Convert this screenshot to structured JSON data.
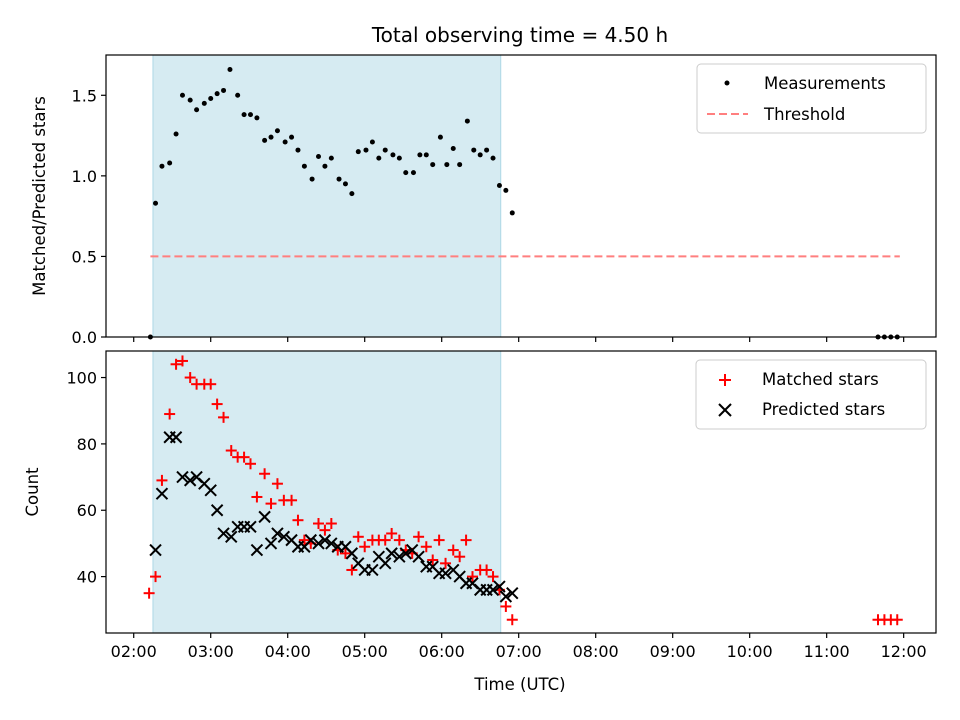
{
  "chart_data": [
    {
      "type": "scatter",
      "title": "Total observing time = 4.50 h",
      "xlabel": "",
      "ylabel": "Matched/Predicted stars",
      "xlim": [
        "02:00",
        "12:00"
      ],
      "ylim": [
        0,
        1.75
      ],
      "yticks": [
        "0.0",
        "0.5",
        "1.0",
        "1.5"
      ],
      "shaded_region": [
        "02:15",
        "06:46"
      ],
      "legend": {
        "placement": "top-right",
        "entries": [
          "Measurements",
          "Threshold"
        ]
      },
      "threshold": {
        "name": "Threshold",
        "y": 0.5,
        "x_range": [
          "02:13",
          "11:57"
        ],
        "color": "#ff7f7f"
      },
      "series": [
        {
          "name": "Measurements",
          "color": "#000000",
          "points": [
            [
              "02:13",
              0.0
            ],
            [
              "02:17",
              0.83
            ],
            [
              "02:22",
              1.06
            ],
            [
              "02:28",
              1.08
            ],
            [
              "02:33",
              1.26
            ],
            [
              "02:38",
              1.5
            ],
            [
              "02:44",
              1.47
            ],
            [
              "02:49",
              1.41
            ],
            [
              "02:55",
              1.45
            ],
            [
              "03:00",
              1.48
            ],
            [
              "03:05",
              1.51
            ],
            [
              "03:10",
              1.53
            ],
            [
              "03:15",
              1.66
            ],
            [
              "03:21",
              1.5
            ],
            [
              "03:26",
              1.38
            ],
            [
              "03:31",
              1.38
            ],
            [
              "03:36",
              1.36
            ],
            [
              "03:42",
              1.22
            ],
            [
              "03:47",
              1.24
            ],
            [
              "03:52",
              1.28
            ],
            [
              "03:58",
              1.21
            ],
            [
              "04:03",
              1.24
            ],
            [
              "04:08",
              1.16
            ],
            [
              "04:13",
              1.06
            ],
            [
              "04:19",
              0.98
            ],
            [
              "04:24",
              1.12
            ],
            [
              "04:29",
              1.06
            ],
            [
              "04:34",
              1.11
            ],
            [
              "04:40",
              0.98
            ],
            [
              "04:45",
              0.95
            ],
            [
              "04:50",
              0.89
            ],
            [
              "04:55",
              1.15
            ],
            [
              "05:01",
              1.16
            ],
            [
              "05:06",
              1.21
            ],
            [
              "05:11",
              1.11
            ],
            [
              "05:16",
              1.16
            ],
            [
              "05:22",
              1.13
            ],
            [
              "05:27",
              1.11
            ],
            [
              "05:32",
              1.02
            ],
            [
              "05:38",
              1.02
            ],
            [
              "05:43",
              1.13
            ],
            [
              "05:48",
              1.13
            ],
            [
              "05:53",
              1.07
            ],
            [
              "05:59",
              1.24
            ],
            [
              "06:04",
              1.07
            ],
            [
              "06:09",
              1.17
            ],
            [
              "06:14",
              1.07
            ],
            [
              "06:20",
              1.34
            ],
            [
              "06:25",
              1.16
            ],
            [
              "06:30",
              1.13
            ],
            [
              "06:35",
              1.16
            ],
            [
              "06:40",
              1.11
            ],
            [
              "06:45",
              0.94
            ],
            [
              "06:50",
              0.91
            ],
            [
              "06:55",
              0.77
            ],
            [
              "11:40",
              0.0
            ],
            [
              "11:45",
              0.0
            ],
            [
              "11:50",
              0.0
            ],
            [
              "11:55",
              0.0
            ]
          ]
        }
      ]
    },
    {
      "type": "scatter",
      "title": "",
      "xlabel": "Time (UTC)",
      "ylabel": "Count",
      "xlim": [
        "02:00",
        "12:00"
      ],
      "ylim": [
        23,
        108
      ],
      "yticks": [
        "40",
        "60",
        "80",
        "100"
      ],
      "xticks": [
        "02:00",
        "03:00",
        "04:00",
        "05:00",
        "06:00",
        "07:00",
        "08:00",
        "09:00",
        "10:00",
        "11:00",
        "12:00"
      ],
      "shaded_region": [
        "02:15",
        "06:46"
      ],
      "legend": {
        "placement": "top-right",
        "entries": [
          "Matched stars",
          "Predicted stars"
        ]
      },
      "series": [
        {
          "name": "Matched stars",
          "marker": "plus",
          "color": "#ff0000",
          "points": [
            [
              "02:12",
              35
            ],
            [
              "02:17",
              40
            ],
            [
              "02:22",
              69
            ],
            [
              "02:28",
              89
            ],
            [
              "02:33",
              104
            ],
            [
              "02:38",
              105
            ],
            [
              "02:44",
              100
            ],
            [
              "02:49",
              98
            ],
            [
              "02:55",
              98
            ],
            [
              "03:00",
              98
            ],
            [
              "03:05",
              92
            ],
            [
              "03:10",
              88
            ],
            [
              "03:16",
              78
            ],
            [
              "03:21",
              76
            ],
            [
              "03:26",
              76
            ],
            [
              "03:31",
              74
            ],
            [
              "03:36",
              64
            ],
            [
              "03:42",
              71
            ],
            [
              "03:47",
              62
            ],
            [
              "03:52",
              68
            ],
            [
              "03:57",
              63
            ],
            [
              "04:03",
              63
            ],
            [
              "04:08",
              57
            ],
            [
              "04:13",
              51
            ],
            [
              "04:18",
              50
            ],
            [
              "04:24",
              56
            ],
            [
              "04:29",
              54
            ],
            [
              "04:34",
              56
            ],
            [
              "04:39",
              48
            ],
            [
              "04:45",
              47
            ],
            [
              "04:50",
              42
            ],
            [
              "04:55",
              52
            ],
            [
              "05:00",
              49
            ],
            [
              "05:06",
              51
            ],
            [
              "05:11",
              51
            ],
            [
              "05:16",
              51
            ],
            [
              "05:21",
              53
            ],
            [
              "05:27",
              51
            ],
            [
              "05:32",
              48
            ],
            [
              "05:37",
              47
            ],
            [
              "05:42",
              52
            ],
            [
              "05:48",
              49
            ],
            [
              "05:53",
              45
            ],
            [
              "05:58",
              51
            ],
            [
              "06:03",
              44
            ],
            [
              "06:09",
              48
            ],
            [
              "06:14",
              46
            ],
            [
              "06:19",
              51
            ],
            [
              "06:24",
              40
            ],
            [
              "06:30",
              42
            ],
            [
              "06:35",
              42
            ],
            [
              "06:40",
              40
            ],
            [
              "06:45",
              36
            ],
            [
              "06:50",
              31
            ],
            [
              "06:55",
              27
            ],
            [
              "11:40",
              27
            ],
            [
              "11:45",
              27
            ],
            [
              "11:50",
              27
            ],
            [
              "11:55",
              27
            ]
          ]
        },
        {
          "name": "Predicted stars",
          "marker": "x",
          "color": "#000000",
          "points": [
            [
              "02:17",
              48
            ],
            [
              "02:22",
              65
            ],
            [
              "02:28",
              82
            ],
            [
              "02:33",
              82
            ],
            [
              "02:38",
              70
            ],
            [
              "02:44",
              69
            ],
            [
              "02:49",
              70
            ],
            [
              "02:55",
              68
            ],
            [
              "03:00",
              66
            ],
            [
              "03:05",
              60
            ],
            [
              "03:10",
              53
            ],
            [
              "03:16",
              52
            ],
            [
              "03:21",
              55
            ],
            [
              "03:26",
              55
            ],
            [
              "03:31",
              55
            ],
            [
              "03:36",
              48
            ],
            [
              "03:42",
              58
            ],
            [
              "03:47",
              50
            ],
            [
              "03:52",
              53
            ],
            [
              "03:57",
              52
            ],
            [
              "04:03",
              51
            ],
            [
              "04:08",
              49
            ],
            [
              "04:13",
              49
            ],
            [
              "04:18",
              51
            ],
            [
              "04:24",
              50
            ],
            [
              "04:29",
              51
            ],
            [
              "04:34",
              50
            ],
            [
              "04:39",
              49
            ],
            [
              "04:45",
              49
            ],
            [
              "04:50",
              47
            ],
            [
              "04:55",
              44
            ],
            [
              "05:00",
              42
            ],
            [
              "05:06",
              42
            ],
            [
              "05:11",
              46
            ],
            [
              "05:16",
              44
            ],
            [
              "05:21",
              47
            ],
            [
              "05:27",
              46
            ],
            [
              "05:32",
              47
            ],
            [
              "05:37",
              48
            ],
            [
              "05:42",
              46
            ],
            [
              "05:48",
              43
            ],
            [
              "05:53",
              43
            ],
            [
              "05:58",
              41
            ],
            [
              "06:03",
              41
            ],
            [
              "06:09",
              42
            ],
            [
              "06:14",
              40
            ],
            [
              "06:19",
              38
            ],
            [
              "06:24",
              38
            ],
            [
              "06:30",
              36
            ],
            [
              "06:35",
              36
            ],
            [
              "06:40",
              36
            ],
            [
              "06:45",
              37
            ],
            [
              "06:50",
              34
            ],
            [
              "06:55",
              35
            ]
          ]
        }
      ]
    }
  ]
}
